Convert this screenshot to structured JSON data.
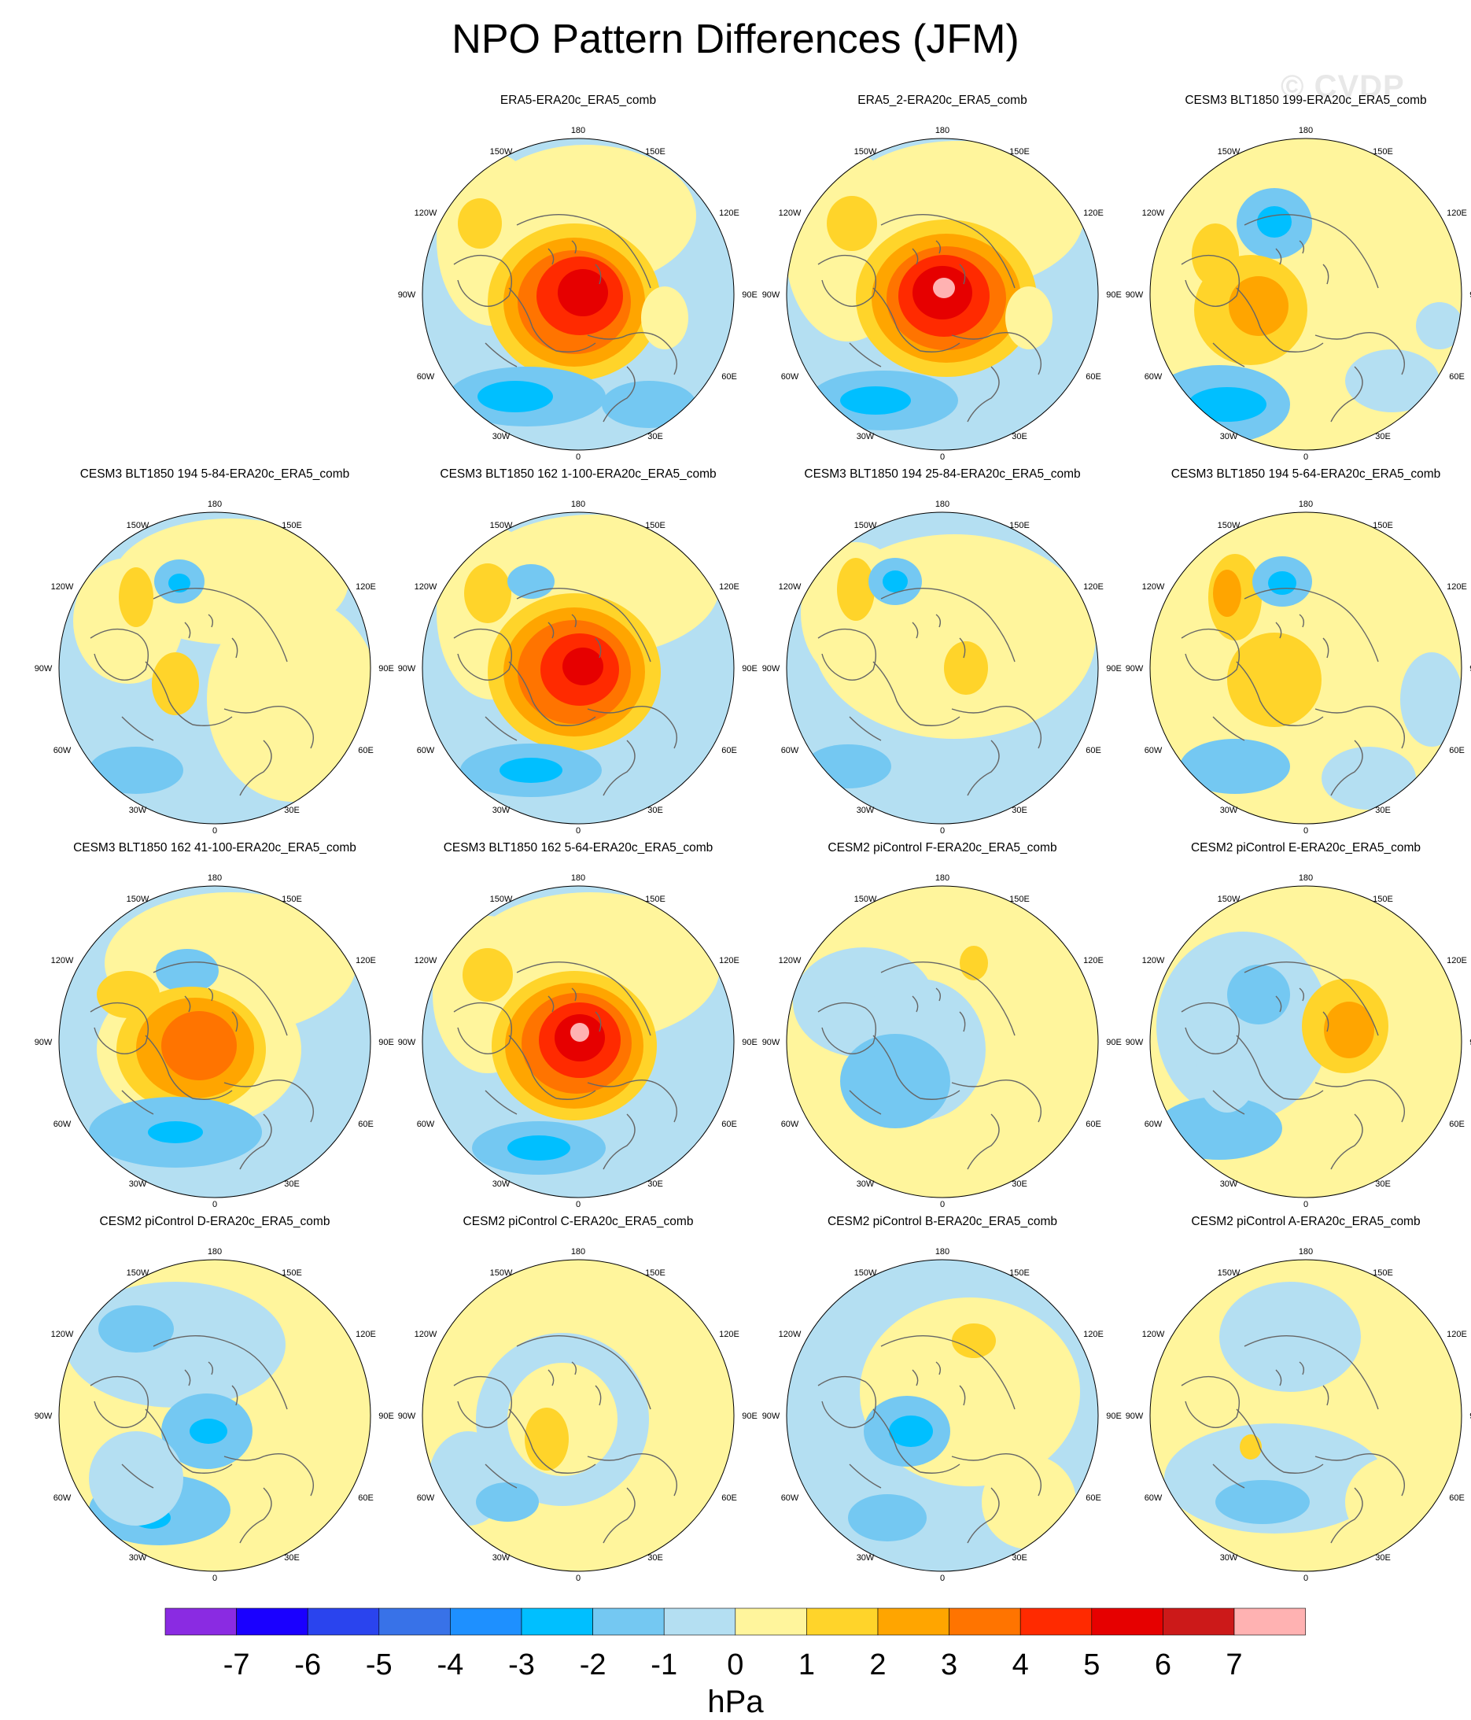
{
  "title": "NPO Pattern Differences (JFM)",
  "watermark": "© CVDP",
  "lon_labels": {
    "top": "180",
    "top_left": "150W",
    "top_right": "150E",
    "upper_left": "120W",
    "upper_right": "120E",
    "left": "90W",
    "right": "90E",
    "lower_left": "60W",
    "lower_right": "60E",
    "bottom_left": "30W",
    "bottom_right": "30E",
    "bottom": "0"
  },
  "colorbar": {
    "units": "hPa",
    "colors": [
      "#8a2be2",
      "#1a00ff",
      "#2a44ee",
      "#3872e8",
      "#1e90ff",
      "#00bfff",
      "#74c8f2",
      "#b4dff2",
      "#fff59c",
      "#ffd42a",
      "#ffa500",
      "#ff7400",
      "#ff2a00",
      "#e60000",
      "#cc1919",
      "#ffb2b2"
    ],
    "labels": [
      "-7",
      "-6",
      "-5",
      "-4",
      "-3",
      "-2",
      "-1",
      "0",
      "1",
      "2",
      "3",
      "4",
      "5",
      "6",
      "7"
    ]
  },
  "panels": [
    {
      "title": "ERA5-ERA20c_ERA5_comb",
      "row": 0,
      "col": 1,
      "bg": "#b4dff2",
      "blobs": [
        [
          230,
          120,
          140,
          90,
          "#fff59c"
        ],
        [
          110,
          150,
          70,
          110,
          "#fff59c"
        ],
        [
          95,
          130,
          28,
          32,
          "#ffd42a"
        ],
        [
          215,
          230,
          110,
          100,
          "#ffd42a"
        ],
        [
          215,
          230,
          90,
          82,
          "#ffa500"
        ],
        [
          215,
          230,
          72,
          66,
          "#ff7400"
        ],
        [
          222,
          222,
          55,
          50,
          "#ff2a00"
        ],
        [
          226,
          218,
          32,
          30,
          "#e60000"
        ],
        [
          155,
          350,
          100,
          38,
          "#74c8f2"
        ],
        [
          140,
          350,
          48,
          20,
          "#00bfff"
        ],
        [
          310,
          360,
          60,
          30,
          "#74c8f2"
        ],
        [
          330,
          250,
          30,
          40,
          "#fff59c"
        ]
      ]
    },
    {
      "title": "ERA5_2-ERA20c_ERA5_comb",
      "row": 0,
      "col": 2,
      "bg": "#b4dff2",
      "blobs": [
        [
          240,
          120,
          160,
          95,
          "#fff59c"
        ],
        [
          100,
          160,
          80,
          120,
          "#fff59c"
        ],
        [
          105,
          130,
          32,
          35,
          "#ffd42a"
        ],
        [
          225,
          225,
          115,
          100,
          "#ffd42a"
        ],
        [
          225,
          225,
          95,
          82,
          "#ffa500"
        ],
        [
          225,
          225,
          76,
          66,
          "#ff7400"
        ],
        [
          222,
          222,
          58,
          52,
          "#ff2a00"
        ],
        [
          220,
          218,
          38,
          34,
          "#e60000"
        ],
        [
          222,
          212,
          14,
          13,
          "#ffb2b2"
        ],
        [
          145,
          355,
          95,
          38,
          "#74c8f2"
        ],
        [
          135,
          355,
          45,
          18,
          "#00bfff"
        ],
        [
          330,
          250,
          30,
          40,
          "#fff59c"
        ]
      ]
    },
    {
      "title": "CESM3 BLT1850 199-ERA20c_ERA5_comb",
      "row": 0,
      "col": 3,
      "bg": "#fff59c",
      "blobs": [
        [
          180,
          130,
          48,
          45,
          "#74c8f2"
        ],
        [
          180,
          128,
          22,
          20,
          "#00bfff"
        ],
        [
          110,
          360,
          90,
          50,
          "#74c8f2"
        ],
        [
          120,
          360,
          50,
          22,
          "#00bfff"
        ],
        [
          150,
          240,
          72,
          70,
          "#ffd42a"
        ],
        [
          160,
          235,
          38,
          38,
          "#ffa500"
        ],
        [
          105,
          170,
          30,
          40,
          "#ffd42a"
        ],
        [
          330,
          330,
          60,
          40,
          "#b4dff2"
        ],
        [
          390,
          260,
          30,
          30,
          "#b4dff2"
        ]
      ]
    },
    {
      "title": "CESM3 BLT1850 194 5-84-ERA20c_ERA5_comb",
      "row": 1,
      "col": 0,
      "bg": "#b4dff2",
      "blobs": [
        [
          240,
          110,
          150,
          80,
          "#fff59c"
        ],
        [
          110,
          160,
          70,
          80,
          "#fff59c"
        ],
        [
          320,
          260,
          110,
          130,
          "#fff59c"
        ],
        [
          120,
          130,
          22,
          38,
          "#ffd42a"
        ],
        [
          175,
          110,
          32,
          28,
          "#74c8f2"
        ],
        [
          175,
          112,
          14,
          12,
          "#00bfff"
        ],
        [
          170,
          240,
          30,
          40,
          "#ffd42a"
        ],
        [
          120,
          350,
          60,
          30,
          "#74c8f2"
        ]
      ]
    },
    {
      "title": "CESM3 BLT1850 162 1-100-ERA20c_ERA5_comb",
      "row": 1,
      "col": 1,
      "bg": "#b4dff2",
      "blobs": [
        [
          240,
          115,
          160,
          90,
          "#fff59c"
        ],
        [
          110,
          150,
          70,
          110,
          "#fff59c"
        ],
        [
          105,
          125,
          30,
          38,
          "#ffd42a"
        ],
        [
          160,
          110,
          30,
          22,
          "#74c8f2"
        ],
        [
          215,
          225,
          110,
          100,
          "#ffd42a"
        ],
        [
          215,
          225,
          90,
          82,
          "#ffa500"
        ],
        [
          215,
          225,
          72,
          66,
          "#ff7400"
        ],
        [
          222,
          222,
          50,
          46,
          "#ff2a00"
        ],
        [
          226,
          218,
          26,
          24,
          "#e60000"
        ],
        [
          160,
          350,
          90,
          34,
          "#74c8f2"
        ],
        [
          160,
          350,
          40,
          16,
          "#00bfff"
        ]
      ]
    },
    {
      "title": "CESM3 BLT1850 194 25-84-ERA20c_ERA5_comb",
      "row": 1,
      "col": 2,
      "bg": "#b4dff2",
      "blobs": [
        [
          235,
          180,
          180,
          130,
          "#fff59c"
        ],
        [
          110,
          150,
          70,
          90,
          "#fff59c"
        ],
        [
          110,
          120,
          24,
          40,
          "#ffd42a"
        ],
        [
          160,
          110,
          34,
          30,
          "#74c8f2"
        ],
        [
          160,
          110,
          16,
          14,
          "#00bfff"
        ],
        [
          250,
          220,
          28,
          34,
          "#ffd42a"
        ],
        [
          100,
          345,
          55,
          28,
          "#74c8f2"
        ]
      ]
    },
    {
      "title": "CESM3 BLT1850 194 5-64-ERA20c_ERA5_comb",
      "row": 1,
      "col": 3,
      "bg": "#fff59c",
      "blobs": [
        [
          130,
          130,
          34,
          55,
          "#ffd42a"
        ],
        [
          120,
          125,
          18,
          30,
          "#ffa500"
        ],
        [
          190,
          110,
          38,
          32,
          "#74c8f2"
        ],
        [
          190,
          112,
          18,
          15,
          "#00bfff"
        ],
        [
          180,
          235,
          60,
          60,
          "#ffd42a"
        ],
        [
          130,
          345,
          70,
          35,
          "#74c8f2"
        ],
        [
          380,
          260,
          40,
          60,
          "#b4dff2"
        ],
        [
          300,
          360,
          60,
          40,
          "#b4dff2"
        ]
      ]
    },
    {
      "title": "CESM3 BLT1850 162 41-100-ERA20c_ERA5_comb",
      "row": 2,
      "col": 0,
      "bg": "#b4dff2",
      "blobs": [
        [
          240,
          120,
          160,
          90,
          "#fff59c"
        ],
        [
          200,
          230,
          130,
          100,
          "#fff59c"
        ],
        [
          110,
          160,
          40,
          30,
          "#ffd42a"
        ],
        [
          185,
          130,
          40,
          28,
          "#74c8f2"
        ],
        [
          190,
          230,
          95,
          80,
          "#ffd42a"
        ],
        [
          195,
          228,
          75,
          64,
          "#ffa500"
        ],
        [
          200,
          225,
          48,
          44,
          "#ff7400"
        ],
        [
          170,
          335,
          110,
          45,
          "#74c8f2"
        ],
        [
          170,
          335,
          35,
          14,
          "#00bfff"
        ]
      ]
    },
    {
      "title": "CESM3 BLT1850 162 5-64-ERA20c_ERA5_comb",
      "row": 2,
      "col": 1,
      "bg": "#b4dff2",
      "blobs": [
        [
          235,
          125,
          165,
          95,
          "#fff59c"
        ],
        [
          105,
          160,
          70,
          100,
          "#fff59c"
        ],
        [
          105,
          135,
          32,
          34,
          "#ffd42a"
        ],
        [
          215,
          225,
          105,
          95,
          "#ffd42a"
        ],
        [
          215,
          225,
          88,
          80,
          "#ffa500"
        ],
        [
          218,
          222,
          70,
          64,
          "#ff7400"
        ],
        [
          222,
          218,
          52,
          48,
          "#ff2a00"
        ],
        [
          222,
          215,
          32,
          30,
          "#e60000"
        ],
        [
          222,
          208,
          12,
          12,
          "#ffb2b2"
        ],
        [
          170,
          355,
          85,
          34,
          "#74c8f2"
        ],
        [
          170,
          355,
          40,
          16,
          "#00bfff"
        ]
      ]
    },
    {
      "title": "CESM2 piControl F-ERA20c_ERA5_comb",
      "row": 2,
      "col": 2,
      "bg": "#fff59c",
      "blobs": [
        [
          120,
          170,
          90,
          70,
          "#b4dff2"
        ],
        [
          190,
          230,
          85,
          90,
          "#b4dff2"
        ],
        [
          160,
          270,
          70,
          60,
          "#74c8f2"
        ],
        [
          260,
          120,
          18,
          22,
          "#ffd42a"
        ],
        [
          130,
          280,
          30,
          20,
          "#74c8f2"
        ]
      ]
    },
    {
      "title": "CESM2 piControl E-ERA20c_ERA5_comb",
      "row": 2,
      "col": 3,
      "bg": "#fff59c",
      "blobs": [
        [
          140,
          200,
          110,
          120,
          "#b4dff2"
        ],
        [
          160,
          160,
          40,
          38,
          "#74c8f2"
        ],
        [
          110,
          330,
          80,
          40,
          "#74c8f2"
        ],
        [
          270,
          200,
          55,
          60,
          "#ffd42a"
        ],
        [
          275,
          205,
          32,
          36,
          "#ffa500"
        ],
        [
          120,
          250,
          40,
          60,
          "#b4dff2"
        ]
      ]
    },
    {
      "title": "CESM2 piControl D-ERA20c_ERA5_comb",
      "row": 3,
      "col": 0,
      "bg": "#fff59c",
      "blobs": [
        [
          170,
          130,
          140,
          80,
          "#b4dff2"
        ],
        [
          120,
          110,
          48,
          30,
          "#74c8f2"
        ],
        [
          210,
          240,
          58,
          48,
          "#74c8f2"
        ],
        [
          212,
          240,
          24,
          16,
          "#00bfff"
        ],
        [
          150,
          340,
          90,
          45,
          "#74c8f2"
        ],
        [
          140,
          350,
          24,
          14,
          "#00bfff"
        ],
        [
          120,
          300,
          60,
          60,
          "#b4dff2"
        ]
      ]
    },
    {
      "title": "CESM2 piControl C-ERA20c_ERA5_comb",
      "row": 3,
      "col": 1,
      "bg": "#fff59c",
      "blobs": [
        [
          200,
          225,
          110,
          110,
          "#b4dff2"
        ],
        [
          200,
          225,
          70,
          72,
          "#fff59c"
        ],
        [
          180,
          250,
          28,
          40,
          "#ffd42a"
        ],
        [
          80,
          300,
          50,
          60,
          "#b4dff2"
        ],
        [
          130,
          330,
          40,
          25,
          "#74c8f2"
        ]
      ]
    },
    {
      "title": "CESM2 piControl B-ERA20c_ERA5_comb",
      "row": 3,
      "col": 2,
      "bg": "#b4dff2",
      "blobs": [
        [
          255,
          190,
          140,
          120,
          "#fff59c"
        ],
        [
          260,
          125,
          28,
          22,
          "#ffd42a"
        ],
        [
          175,
          240,
          55,
          45,
          "#74c8f2"
        ],
        [
          180,
          240,
          28,
          20,
          "#00bfff"
        ],
        [
          150,
          350,
          50,
          30,
          "#74c8f2"
        ],
        [
          330,
          330,
          60,
          60,
          "#fff59c"
        ]
      ]
    },
    {
      "title": "CESM2 piControl A-ERA20c_ERA5_comb",
      "row": 3,
      "col": 3,
      "bg": "#fff59c",
      "blobs": [
        [
          180,
          300,
          140,
          70,
          "#b4dff2"
        ],
        [
          165,
          330,
          60,
          28,
          "#74c8f2"
        ],
        [
          200,
          120,
          90,
          70,
          "#b4dff2"
        ],
        [
          150,
          260,
          14,
          16,
          "#ffd42a"
        ],
        [
          340,
          330,
          70,
          60,
          "#fff59c"
        ]
      ]
    }
  ]
}
